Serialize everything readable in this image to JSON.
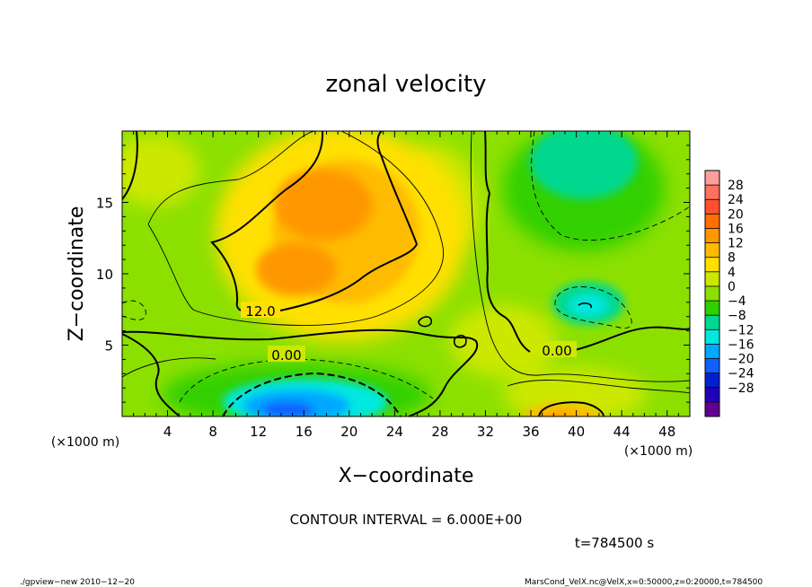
{
  "chart_data": {
    "type": "heatmap",
    "title": "zonal velocity",
    "xlabel": "X−coordinate",
    "ylabel": "Z−coordinate",
    "x_unit_left": "(×1000 m)",
    "x_unit_right": "(×1000 m)",
    "xlim": [
      0,
      50
    ],
    "ylim": [
      0,
      20
    ],
    "x_ticks": [
      4,
      8,
      12,
      16,
      20,
      24,
      28,
      32,
      36,
      40,
      44,
      48
    ],
    "y_ticks": [
      5,
      10,
      15
    ],
    "colorbar": {
      "labels": [
        "28",
        "24",
        "20",
        "16",
        "12",
        "8",
        "4",
        "0",
        "−4",
        "−8",
        "−12",
        "−16",
        "−20",
        "−24",
        "−28"
      ],
      "colors": [
        "#ff9c9c",
        "#ff7060",
        "#ff5030",
        "#ff7000",
        "#ff9800",
        "#ffbb00",
        "#ffe000",
        "#cde800",
        "#8ce000",
        "#30d000",
        "#00d890",
        "#00e8e0",
        "#00a8ff",
        "#1060ff",
        "#0020d0",
        "#2000b8",
        "#600090"
      ]
    },
    "contour_labels": [
      "12.0",
      "0.00",
      "0.00"
    ],
    "contour_interval_text": "CONTOUR INTERVAL = 6.000E+00",
    "time_text": "t=784500 s",
    "footer_left": "./gpview−new  2010−12−20",
    "footer_right": "MarsCond_VelX.nc@VelX,x=0:50000,z=0:20000,t=784500",
    "field": {
      "background_value": 5,
      "features": [
        {
          "name": "upper positive jet",
          "x": 18.5,
          "z": 14.5,
          "value": 16
        },
        {
          "name": "mid positive jet",
          "x": 16.5,
          "z": 10.5,
          "value": 16
        },
        {
          "name": "upper-right negative",
          "x": 41,
          "z": 17,
          "value": -7
        },
        {
          "name": "right negative cell",
          "x": 41,
          "z": 7.8,
          "value": -9
        },
        {
          "name": "lower negative jet",
          "x": 18,
          "z": 1.0,
          "value": -18
        },
        {
          "name": "lower-right positive",
          "x": 40.5,
          "z": 0.3,
          "value": 16
        }
      ]
    }
  }
}
